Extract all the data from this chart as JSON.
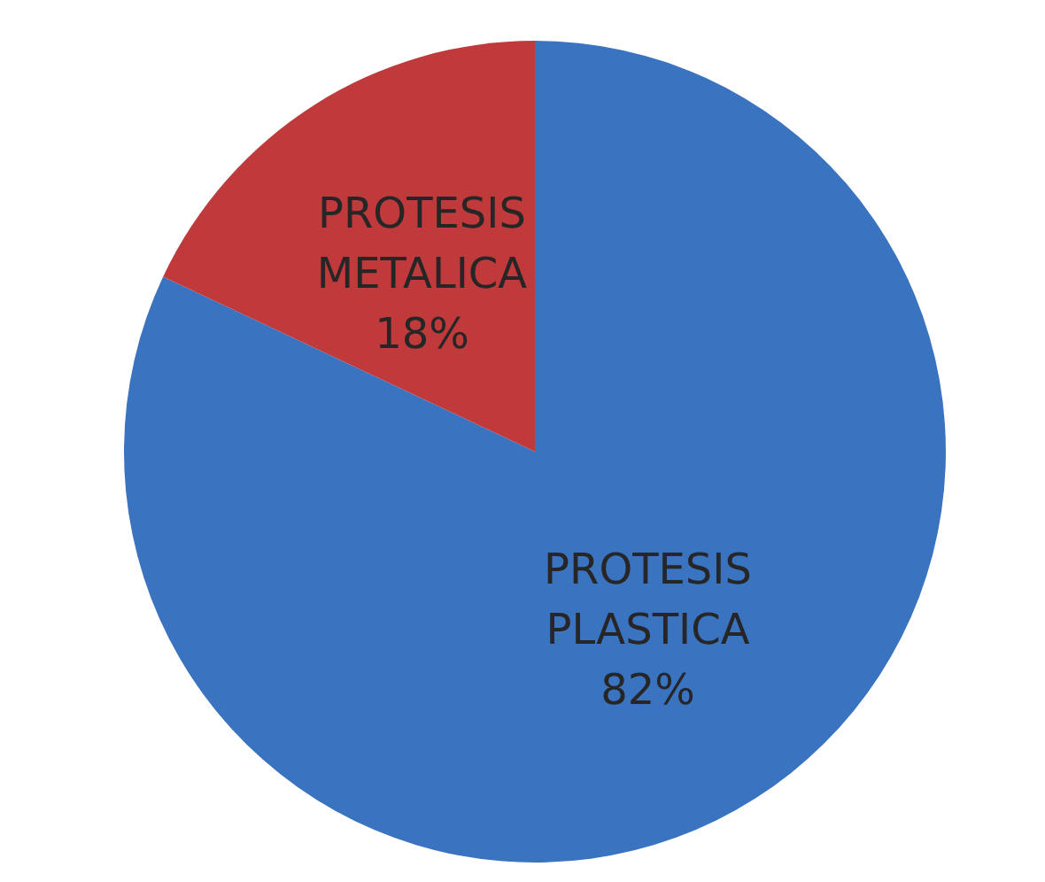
{
  "chart_data": {
    "type": "pie",
    "categories": [
      "PROTESIS PLASTICA",
      "PROTESIS METALICA"
    ],
    "values": [
      82,
      18
    ],
    "colors": [
      "#3a73c0",
      "#c0393b"
    ],
    "value_labels": [
      "82%",
      "18%"
    ],
    "legend": false
  }
}
